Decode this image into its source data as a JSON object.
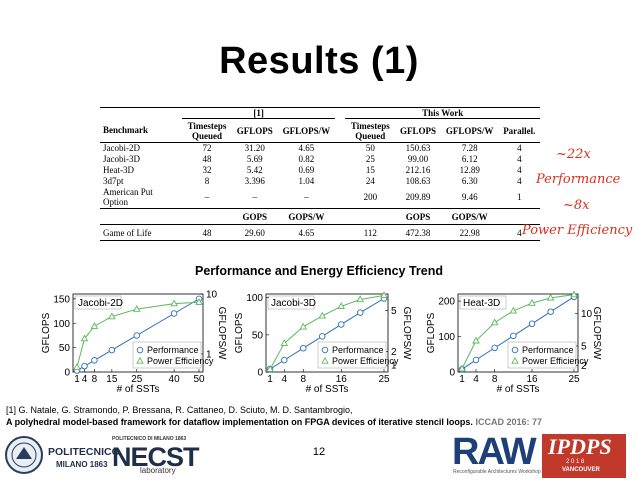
{
  "slide": {
    "title": "Results (1)",
    "page_number": "12"
  },
  "table": {
    "group_ref": "[1]",
    "group_this": "This Work",
    "headers": {
      "benchmark": "Benchmark",
      "ts_queued_ref": "Timesteps Queued",
      "gflops_ref": "GFLOPS",
      "gflopsw_ref": "GFLOPS/W",
      "ts_queued_this": "Timesteps Queued",
      "gflops_this": "GFLOPS",
      "gflopsw_this": "GFLOPS/W",
      "parallel": "Parallel."
    },
    "rows": [
      {
        "bench": "Jacobi-2D",
        "c1": "72",
        "c2": "31.20",
        "c3": "4.65",
        "c4": "50",
        "c5": "150.63",
        "c6": "7.28",
        "c7": "4"
      },
      {
        "bench": "Jacobi-3D",
        "c1": "48",
        "c2": "5.69",
        "c3": "0.82",
        "c4": "25",
        "c5": "99.00",
        "c6": "6.12",
        "c7": "4"
      },
      {
        "bench": "Heat-3D",
        "c1": "32",
        "c2": "5.42",
        "c3": "0.69",
        "c4": "15",
        "c5": "212.16",
        "c6": "12.89",
        "c7": "4"
      },
      {
        "bench": "3d7pt",
        "c1": "8",
        "c2": "3.396",
        "c3": "1.04",
        "c4": "24",
        "c5": "108.63",
        "c6": "6.30",
        "c7": "4"
      },
      {
        "bench": "American Put Option",
        "c1": "–",
        "c2": "–",
        "c3": "–",
        "c4": "200",
        "c5": "209.89",
        "c6": "9.46",
        "c7": "1"
      }
    ],
    "sub_headers": {
      "gops_ref": "GOPS",
      "gopsw_ref": "GOPS/W",
      "gops_this": "GOPS",
      "gopsw_this": "GOPS/W"
    },
    "last_row": {
      "bench": "Game of Life",
      "c1": "48",
      "c2": "29.60",
      "c3": "4.65",
      "c4": "112",
      "c5": "472.38",
      "c6": "22.98",
      "c7": "4"
    }
  },
  "notes": {
    "line1": "~22x",
    "line2": "Performance",
    "line3": "~8x",
    "line4": "Power Efficiency",
    "color": "#d9301c"
  },
  "chart_section_title": "Performance and Energy Efficiency Trend",
  "chart_data": [
    {
      "type": "line",
      "title": "Jacobi-2D",
      "xlabel": "# of SSTs",
      "ylabel": "GFLOPS",
      "y2label": "GFLOPS/W",
      "x_ticks": [
        "1",
        "4",
        "8",
        "15",
        "25",
        "40",
        "50"
      ],
      "y_ticks": [
        "0",
        "50",
        "100",
        "150"
      ],
      "y2_ticks": [
        "1",
        "10"
      ],
      "ylim": [
        0,
        160
      ],
      "series": [
        {
          "name": "Performance",
          "marker": "circle",
          "color": "#2f6fb7",
          "x": [
            1,
            4,
            8,
            15,
            25,
            40,
            50
          ],
          "y": [
            3,
            12,
            24,
            45,
            75,
            120,
            150
          ]
        },
        {
          "name": "Power Efficiency",
          "marker": "triangle",
          "color": "#5cb85c",
          "x": [
            1,
            4,
            8,
            15,
            25,
            40,
            50
          ],
          "y": [
            0.6,
            1.8,
            2.9,
            4.2,
            5.6,
            6.9,
            7.3
          ]
        }
      ],
      "y2lim": [
        0.5,
        10
      ]
    },
    {
      "type": "line",
      "title": "Jacobi-3D",
      "xlabel": "# of SSTs",
      "ylabel": "GFLOPS",
      "y2label": "GFLOPS/W",
      "x_ticks": [
        "1",
        "4",
        "8",
        "16",
        "25"
      ],
      "y_ticks": [
        "0",
        "50",
        "100"
      ],
      "y2_ticks": [
        "1",
        "2",
        "5"
      ],
      "ylim": [
        0,
        105
      ],
      "series": [
        {
          "name": "Performance",
          "marker": "circle",
          "color": "#2f6fb7",
          "x": [
            1,
            4,
            8,
            12,
            16,
            20,
            25
          ],
          "y": [
            4,
            16,
            32,
            48,
            64,
            80,
            99
          ]
        },
        {
          "name": "Power Efficiency",
          "marker": "triangle",
          "color": "#5cb85c",
          "x": [
            1,
            4,
            8,
            12,
            16,
            20,
            25
          ],
          "y": [
            0.7,
            2.6,
            3.8,
            4.6,
            5.3,
            5.8,
            6.1
          ]
        }
      ],
      "y2lim": [
        0.5,
        6.2
      ]
    },
    {
      "type": "line",
      "title": "Heat-3D",
      "xlabel": "# of SSTs",
      "ylabel": "GFLOPS",
      "y2label": "GFLOPS/W",
      "x_ticks": [
        "1",
        "4",
        "8",
        "16",
        "25"
      ],
      "y_ticks": [
        "0",
        "100",
        "200"
      ],
      "y2_ticks": [
        "2",
        "5",
        "10"
      ],
      "ylim": [
        0,
        220
      ],
      "series": [
        {
          "name": "Performance",
          "marker": "circle",
          "color": "#2f6fb7",
          "x": [
            1,
            4,
            8,
            12,
            16,
            20,
            25
          ],
          "y": [
            8,
            34,
            68,
            102,
            136,
            170,
            212
          ]
        },
        {
          "name": "Power Efficiency",
          "marker": "triangle",
          "color": "#5cb85c",
          "x": [
            1,
            4,
            8,
            12,
            16,
            20,
            25
          ],
          "y": [
            1.5,
            5.8,
            8.6,
            10.4,
            11.6,
            12.4,
            12.9
          ]
        }
      ],
      "y2lim": [
        1,
        13
      ]
    }
  ],
  "citation": {
    "authors": "[1] G. Natale, G. Stramondo, P. Bressana, R. Cattaneo, D. Sciuto, M. D. Santambrogio,",
    "title": "A polyhedral model-based framework for dataflow implementation on FPGA devices of iterative stencil loops.",
    "venue": "ICCAD 2016: 77"
  },
  "logos": {
    "polimi_name": "POLITECNICO",
    "polimi_city": "MILANO 1863",
    "necst_top": "POLITECNICO DI MILANO 1863",
    "necst_ne": "NE",
    "necst_cst": "CST",
    "necst_lab": "laboratory",
    "raw": "RAW",
    "raw_sub": "Reconfigurable Architectures Workshop",
    "ipdps": "IPDPS",
    "ipdps_year": "2 0 1 8",
    "ipdps_city": "VANCOUVER"
  }
}
